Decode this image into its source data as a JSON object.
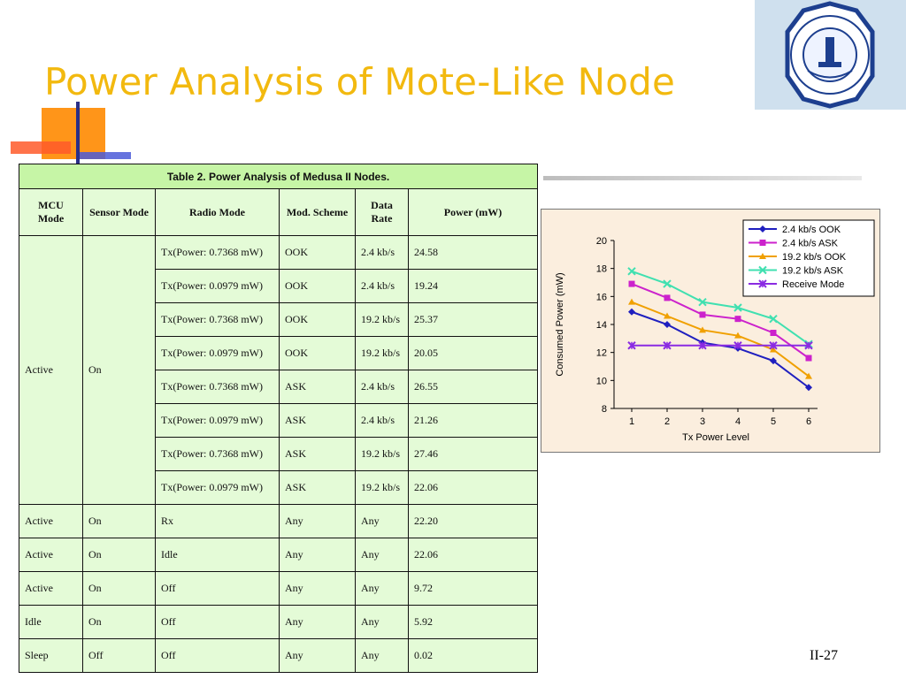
{
  "slide": {
    "title": "Power Analysis of Mote-Like Node",
    "page_number": "II-27"
  },
  "table": {
    "caption": "Table 2. Power Analysis of Medusa II Nodes.",
    "headers": [
      "MCU Mode",
      "Sensor Mode",
      "Radio Mode",
      "Mod. Scheme",
      "Data Rate",
      "Power (mW)"
    ],
    "group_mcu": "Active",
    "group_sensor": "On",
    "group_rows": [
      {
        "radio": "Tx(Power: 0.7368 mW)",
        "mod": "OOK",
        "rate": "2.4 kb/s",
        "power": "24.58"
      },
      {
        "radio": "Tx(Power: 0.0979 mW)",
        "mod": "OOK",
        "rate": "2.4 kb/s",
        "power": "19.24"
      },
      {
        "radio": "Tx(Power: 0.7368 mW)",
        "mod": "OOK",
        "rate": "19.2 kb/s",
        "power": "25.37"
      },
      {
        "radio": "Tx(Power: 0.0979 mW)",
        "mod": "OOK",
        "rate": "19.2 kb/s",
        "power": "20.05"
      },
      {
        "radio": "Tx(Power: 0.7368 mW)",
        "mod": "ASK",
        "rate": "2.4 kb/s",
        "power": "26.55"
      },
      {
        "radio": "Tx(Power: 0.0979 mW)",
        "mod": "ASK",
        "rate": "2.4 kb/s",
        "power": "21.26"
      },
      {
        "radio": "Tx(Power: 0.7368 mW)",
        "mod": "ASK",
        "rate": "19.2 kb/s",
        "power": "27.46"
      },
      {
        "radio": "Tx(Power: 0.0979 mW)",
        "mod": "ASK",
        "rate": "19.2 kb/s",
        "power": "22.06"
      }
    ],
    "other_rows": [
      {
        "mcu": "Active",
        "sensor": "On",
        "radio": "Rx",
        "mod": "Any",
        "rate": "Any",
        "power": "22.20"
      },
      {
        "mcu": "Active",
        "sensor": "On",
        "radio": "Idle",
        "mod": "Any",
        "rate": "Any",
        "power": "22.06"
      },
      {
        "mcu": "Active",
        "sensor": "On",
        "radio": "Off",
        "mod": "Any",
        "rate": "Any",
        "power": "9.72"
      },
      {
        "mcu": "Idle",
        "sensor": "On",
        "radio": "Off",
        "mod": "Any",
        "rate": "Any",
        "power": "5.92"
      },
      {
        "mcu": "Sleep",
        "sensor": "Off",
        "radio": "Off",
        "mod": "Any",
        "rate": "Any",
        "power": "0.02"
      }
    ]
  },
  "chart_data": {
    "type": "line",
    "title": "",
    "xlabel": "Tx Power Level",
    "ylabel": "Consumed Power (mW)",
    "x": [
      1,
      2,
      3,
      4,
      5,
      6
    ],
    "xlim": [
      1,
      6
    ],
    "ylim": [
      8,
      20
    ],
    "yticks": [
      8,
      10,
      12,
      14,
      16,
      18,
      20
    ],
    "grid": false,
    "legend_position": "top-right",
    "series": [
      {
        "name": "2.4 kb/s OOK",
        "color": "#1f1fbf",
        "marker": "diamond",
        "values": [
          14.9,
          14.0,
          12.7,
          12.3,
          11.4,
          9.5
        ]
      },
      {
        "name": "2.4 kb/s ASK",
        "color": "#cc22cc",
        "marker": "square",
        "values": [
          16.9,
          15.9,
          14.7,
          14.4,
          13.4,
          11.6
        ]
      },
      {
        "name": "19.2 kb/s OOK",
        "color": "#f0a000",
        "marker": "triangle",
        "values": [
          15.6,
          14.6,
          13.6,
          13.2,
          12.2,
          10.3
        ]
      },
      {
        "name": "19.2 kb/s ASK",
        "color": "#40e0b0",
        "marker": "x",
        "values": [
          17.8,
          16.9,
          15.6,
          15.2,
          14.4,
          12.6
        ]
      },
      {
        "name": "Receive Mode",
        "color": "#8a2be2",
        "marker": "asterisk",
        "values": [
          12.5,
          12.5,
          12.5,
          12.5,
          12.5,
          12.5
        ]
      }
    ]
  }
}
